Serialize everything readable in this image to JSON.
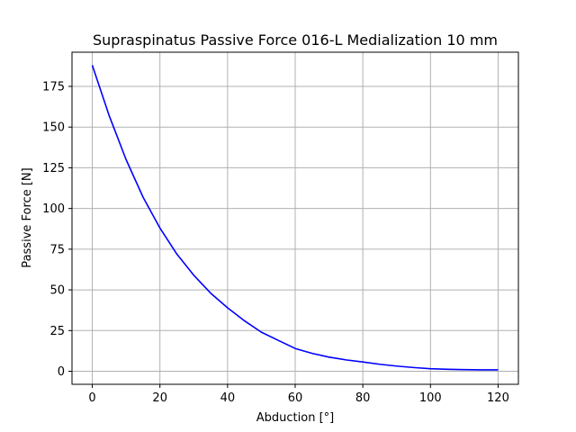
{
  "chart_data": {
    "type": "line",
    "title": "Supraspinatus Passive Force 016-L Medialization 10 mm",
    "xlabel": "Abduction [°]",
    "ylabel": "Passive Force [N]",
    "xlim": [
      -6,
      126
    ],
    "ylim": [
      -8,
      196
    ],
    "xticks": [
      0,
      20,
      40,
      60,
      80,
      100,
      120
    ],
    "yticks": [
      0,
      25,
      50,
      75,
      100,
      125,
      150,
      175
    ],
    "grid": true,
    "series": [
      {
        "color": "#0000ff",
        "x": [
          0,
          5,
          10,
          15,
          20,
          25,
          30,
          35,
          40,
          45,
          50,
          55,
          60,
          65,
          70,
          75,
          80,
          85,
          90,
          95,
          100,
          105,
          110,
          115,
          120
        ],
        "y": [
          188,
          157,
          130,
          107,
          88,
          72,
          59,
          48,
          39,
          31,
          24,
          19,
          14,
          11,
          8.7,
          7,
          5.7,
          4.3,
          3.2,
          2.3,
          1.6,
          1.2,
          1.0,
          0.9,
          0.9
        ]
      }
    ]
  }
}
